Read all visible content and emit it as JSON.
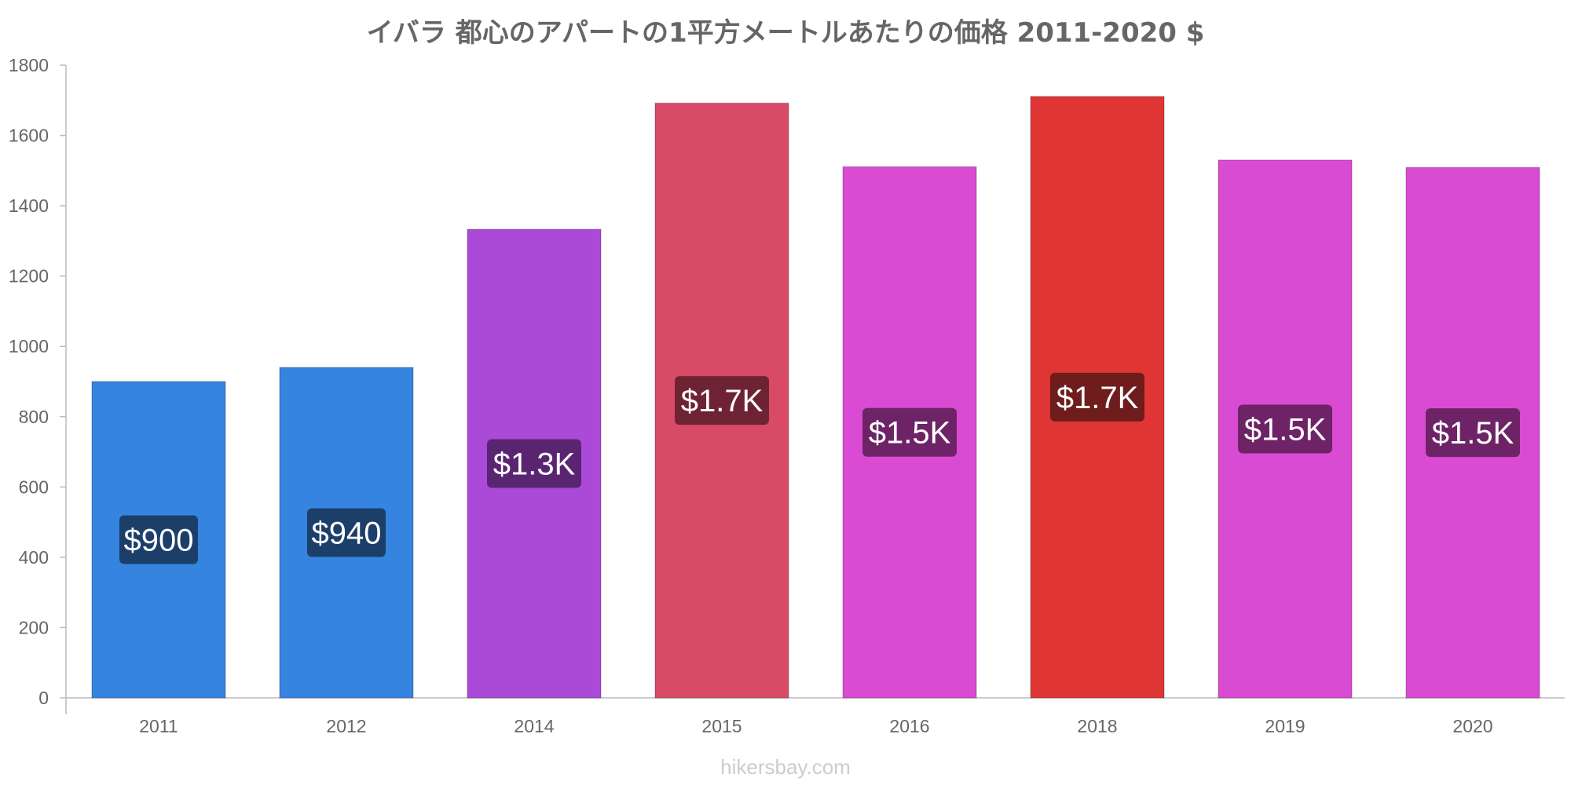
{
  "chart_data": {
    "type": "bar",
    "title": "イバラ 都心のアパートの1平方メートルあたりの価格 2011-2020 $",
    "xlabel": "",
    "ylabel": "",
    "categories": [
      "2011",
      "2012",
      "2014",
      "2015",
      "2016",
      "2018",
      "2019",
      "2020"
    ],
    "values": [
      900,
      940,
      1333,
      1692,
      1511,
      1711,
      1530,
      1509
    ],
    "value_labels": [
      "$900",
      "$940",
      "$1.3K",
      "$1.7K",
      "$1.5K",
      "$1.7K",
      "$1.5K",
      "$1.5K"
    ],
    "bar_colors": [
      "#3584e0",
      "#3584e0",
      "#ab49d9",
      "#d84a66",
      "#d94bd3",
      "#e03535",
      "#d94bd3",
      "#d94bd3"
    ],
    "label_bg_colors": [
      "#1c3f6a",
      "#1c3f6a",
      "#5a2570",
      "#6e2332",
      "#6e2366",
      "#6e1c1c",
      "#6e2366",
      "#6e2366"
    ],
    "ylim": [
      0,
      1800
    ],
    "yticks": [
      0,
      200,
      400,
      600,
      800,
      1000,
      1200,
      1400,
      1600,
      1800
    ],
    "grid": false,
    "legend": "none"
  },
  "footer": {
    "source": "hikersbay.com"
  }
}
